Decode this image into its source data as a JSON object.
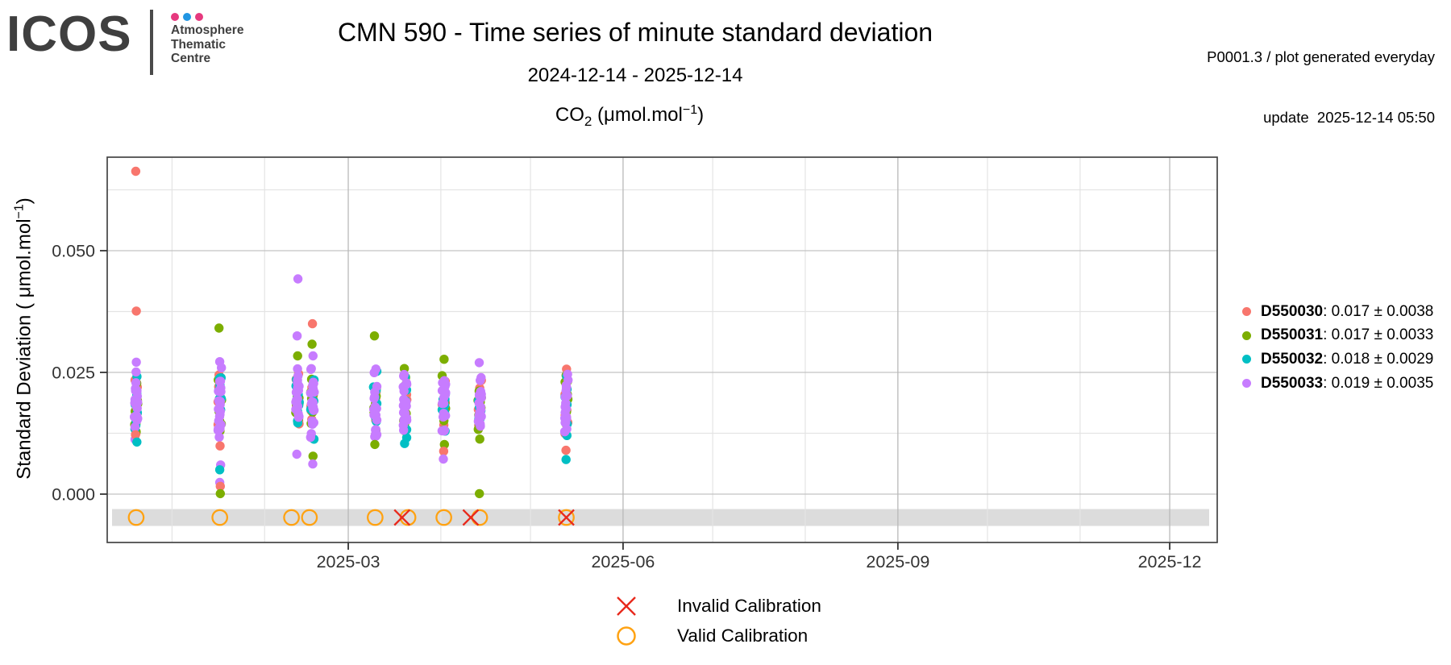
{
  "logo": {
    "brand": "ICOS",
    "dot_colors": [
      "#E6397E",
      "#2196E3",
      "#E6397E"
    ],
    "org_lines": [
      "Atmosphere",
      "Thematic",
      "Centre"
    ],
    "text_color": "#3F3F3F"
  },
  "header": {
    "title": "CMN 590 - Time series of minute standard deviation",
    "subtitle": "2024-12-14 - 2025-12-14",
    "meta_line1": "P0001.3 / plot generated everyday",
    "meta_line2": "update  2025-12-14 05:50"
  },
  "chart_data": {
    "type": "scatter",
    "title_parts": {
      "base": "CO",
      "sub": "2",
      "unit": " (μmol.mol",
      "sup": "−1",
      "close": ")"
    },
    "ylabel_parts": {
      "base": "Standard Deviation ( μmol.mol",
      "sup": "−1",
      "close": ")"
    },
    "x_axis": {
      "range": [
        "2024-12-10",
        "2025-12-18"
      ],
      "ticks": [
        {
          "label": "2025-03",
          "date": "2025-03-01"
        },
        {
          "label": "2025-06",
          "date": "2025-06-01"
        },
        {
          "label": "2025-09",
          "date": "2025-09-01"
        },
        {
          "label": "2025-12",
          "date": "2025-12-01"
        }
      ],
      "minor_month_gridlines": [
        "2025-01-01",
        "2025-02-01",
        "2025-04-01",
        "2025-05-01",
        "2025-07-01",
        "2025-08-01",
        "2025-10-01",
        "2025-11-01"
      ]
    },
    "y_axis": {
      "range": [
        -0.0099,
        0.0705
      ],
      "ticks": [
        {
          "label": "0.000",
          "value": 0.0
        },
        {
          "label": "0.025",
          "value": 0.025
        },
        {
          "label": "0.050",
          "value": 0.05
        }
      ],
      "minor_gridline_values": [
        0.0125,
        0.0375,
        0.0625
      ]
    },
    "series": [
      {
        "id": "D550030",
        "stats": "0.017 ± 0.0038",
        "color": "#F8766D"
      },
      {
        "id": "D550031",
        "stats": "0.017 ± 0.0033",
        "color": "#7CAE00"
      },
      {
        "id": "D550032",
        "stats": "0.018 ± 0.0029",
        "color": "#00BFC4"
      },
      {
        "id": "D550033",
        "stats": "0.019 ± 0.0035",
        "color": "#C77CFF"
      }
    ],
    "clusters": [
      {
        "date": "2024-12-20",
        "dense": [
          0.0112,
          0.0253
        ],
        "n": 46,
        "outliers": [
          {
            "s": 0,
            "v": 0.0663
          },
          {
            "s": 0,
            "v": 0.0376
          },
          {
            "s": 3,
            "v": 0.0271
          },
          {
            "s": 0,
            "v": 0.0122
          },
          {
            "s": 2,
            "v": 0.0107
          }
        ]
      },
      {
        "date": "2025-01-17",
        "dense": [
          0.0106,
          0.0262
        ],
        "n": 46,
        "outliers": [
          {
            "s": 1,
            "v": 0.0341
          },
          {
            "s": 3,
            "v": 0.0272
          },
          {
            "s": 0,
            "v": 0.0099
          },
          {
            "s": 3,
            "v": 0.006
          },
          {
            "s": 2,
            "v": 0.005
          },
          {
            "s": 3,
            "v": 0.0024
          },
          {
            "s": 0,
            "v": 0.0016
          },
          {
            "s": 1,
            "v": 0.0001
          }
        ]
      },
      {
        "date": "2025-02-12",
        "dense": [
          0.011,
          0.0262
        ],
        "n": 44,
        "outliers": [
          {
            "s": 3,
            "v": 0.0442
          },
          {
            "s": 3,
            "v": 0.0325
          },
          {
            "s": 1,
            "v": 0.0284
          },
          {
            "s": 3,
            "v": 0.0082
          }
        ]
      },
      {
        "date": "2025-02-17",
        "dense": [
          0.011,
          0.0258
        ],
        "n": 44,
        "outliers": [
          {
            "s": 0,
            "v": 0.035
          },
          {
            "s": 1,
            "v": 0.0308
          },
          {
            "s": 3,
            "v": 0.0284
          },
          {
            "s": 1,
            "v": 0.0078
          },
          {
            "s": 3,
            "v": 0.0062
          }
        ]
      },
      {
        "date": "2025-03-10",
        "dense": [
          0.0117,
          0.0257
        ],
        "n": 42,
        "outliers": [
          {
            "s": 1,
            "v": 0.0325
          },
          {
            "s": 1,
            "v": 0.0102
          }
        ]
      },
      {
        "date": "2025-03-20",
        "dense": [
          0.0115,
          0.0258
        ],
        "n": 40,
        "outliers": [
          {
            "s": 2,
            "v": 0.0104
          }
        ]
      },
      {
        "date": "2025-04-02",
        "dense": [
          0.0125,
          0.025
        ],
        "n": 40,
        "outliers": [
          {
            "s": 1,
            "v": 0.0277
          },
          {
            "s": 1,
            "v": 0.0102
          },
          {
            "s": 0,
            "v": 0.0088
          },
          {
            "s": 3,
            "v": 0.0072
          }
        ]
      },
      {
        "date": "2025-04-14",
        "dense": [
          0.0131,
          0.025
        ],
        "n": 40,
        "outliers": [
          {
            "s": 3,
            "v": 0.027
          },
          {
            "s": 1,
            "v": 0.0113
          },
          {
            "s": 1,
            "v": 0.0001
          }
        ]
      },
      {
        "date": "2025-05-13",
        "dense": [
          0.0104,
          0.0257
        ],
        "n": 42,
        "outliers": [
          {
            "s": 0,
            "v": 0.009
          },
          {
            "s": 2,
            "v": 0.0071
          }
        ]
      }
    ],
    "calibration_band": {
      "color": "#DCDCDC"
    },
    "calibrations": {
      "valid_dates": [
        "2024-12-20",
        "2025-01-17",
        "2025-02-10",
        "2025-02-16",
        "2025-03-10",
        "2025-03-21",
        "2025-04-02",
        "2025-04-14",
        "2025-05-13"
      ],
      "invalid_dates": [
        "2025-03-19",
        "2025-04-11",
        "2025-05-13"
      ],
      "valid_color": "#FFA212",
      "invalid_color": "#E8291C"
    },
    "bottom_legend": [
      {
        "marker": "invalid-x",
        "label": "Invalid Calibration"
      },
      {
        "marker": "valid-circle",
        "label": "Valid Calibration"
      }
    ]
  }
}
